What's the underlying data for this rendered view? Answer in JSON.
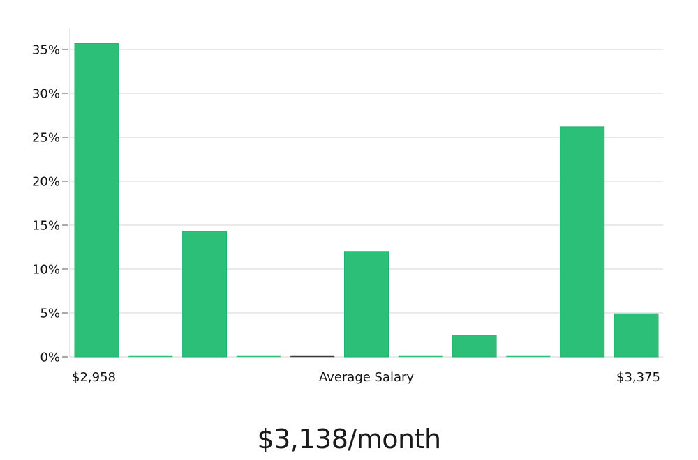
{
  "chart_data": {
    "type": "bar",
    "title": "",
    "xlabel": "Average Salary",
    "ylabel": "",
    "x_range_labels": {
      "min": "$2,958",
      "max": "$3,375"
    },
    "ylim": [
      0,
      37
    ],
    "yticks": [
      0,
      5,
      10,
      15,
      20,
      25,
      30,
      35
    ],
    "ytick_labels": [
      "0%",
      "5%",
      "10%",
      "15%",
      "20%",
      "25%",
      "30%",
      "35%"
    ],
    "bins": 11,
    "values": [
      35.7,
      0,
      14.3,
      0,
      0,
      12.0,
      0,
      2.5,
      0,
      26.2,
      4.9
    ],
    "grid": true,
    "legend": "none",
    "colors": {
      "bar": "#2bbf78",
      "bar_edge": "#22b06c",
      "empty_bin_line": "#3a3a3a"
    }
  },
  "summary": {
    "salary_text": "$3,138/month"
  }
}
